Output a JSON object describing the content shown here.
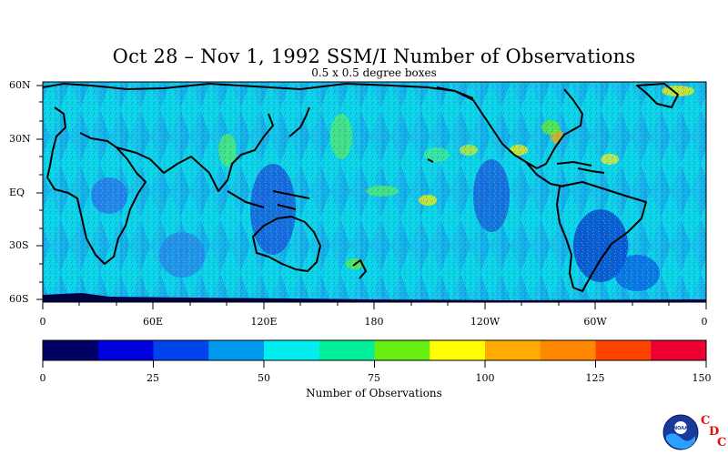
{
  "title": "Oct 28 – Nov 1, 1992 SSM/I Number of Observations",
  "subtitle": "0.5 x 0.5 degree boxes",
  "latitude_labels": [
    "60N",
    "30N",
    "EQ",
    "30S",
    "60S"
  ],
  "longitude_labels": [
    "0",
    "60E",
    "120E",
    "180",
    "120W",
    "60W",
    "0"
  ],
  "colorbar": {
    "title": "Number of Observations",
    "tick_labels": [
      "0",
      "25",
      "50",
      "75",
      "100",
      "125",
      "150"
    ],
    "colors": [
      "#000066",
      "#0000dd",
      "#0044ee",
      "#0099ee",
      "#00eeee",
      "#00ee99",
      "#66ee11",
      "#ffff00",
      "#ffaa00",
      "#ff8800",
      "#ff4400",
      "#ee0033"
    ]
  },
  "logo": {
    "agency": "NOAA",
    "letters": [
      "C",
      "D",
      "C"
    ]
  }
}
